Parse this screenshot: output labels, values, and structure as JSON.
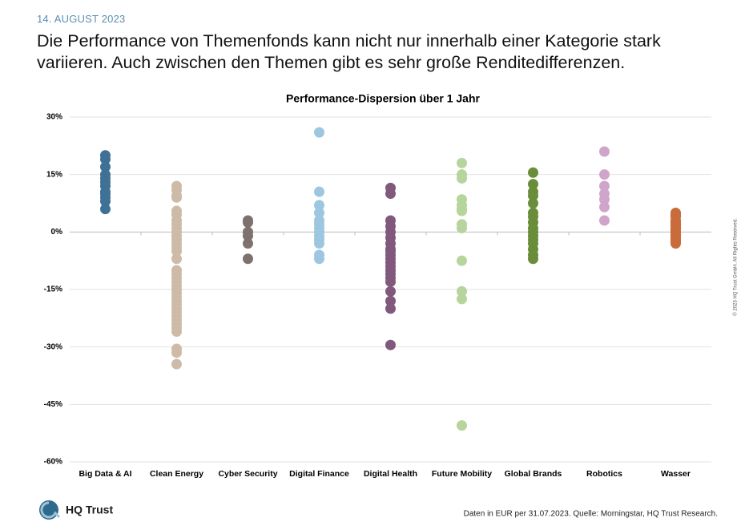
{
  "date": "14. AUGUST 2023",
  "headline": "Die Performance von Themenfonds kann nicht nur innerhalb einer Kategorie stark variieren. Auch zwischen den Themen gibt es sehr große Renditedifferenzen.",
  "chart_data": {
    "type": "strip",
    "title": "Performance-Dispersion über 1 Jahr",
    "categories": [
      "Big Data & AI",
      "Clean Energy",
      "Cyber Security",
      "Digital Finance",
      "Digital Health",
      "Future Mobility",
      "Global Brands",
      "Robotics",
      "Wasser"
    ],
    "colors": [
      "#3f7095",
      "#cdbba7",
      "#7e716e",
      "#9dc6e1",
      "#80597d",
      "#b5d59c",
      "#6a8d3b",
      "#d0a5ca",
      "#c96b3b"
    ],
    "values": [
      [
        20,
        19,
        17,
        15,
        14,
        13,
        12,
        10.5,
        10,
        9,
        8,
        6
      ],
      [
        12,
        11,
        9.5,
        9,
        5.5,
        4.5,
        3,
        2,
        1,
        0,
        -1,
        -2,
        -3,
        -4,
        -5,
        -7,
        -10,
        -11,
        -12,
        -13,
        -14,
        -15,
        -16,
        -17,
        -18,
        -19,
        -20,
        -21,
        -22,
        -23,
        -24,
        -25,
        -26,
        -30.5,
        -31.5,
        -34.5
      ],
      [
        3,
        2.5,
        0,
        -1,
        -3,
        -7
      ],
      [
        26,
        10.5,
        7,
        5,
        3,
        2,
        1,
        0,
        -1,
        -2,
        -3,
        -6,
        -7
      ],
      [
        11.5,
        10,
        3,
        1.5,
        0,
        -1.5,
        -3,
        -4.5,
        -5,
        -6,
        -7,
        -8,
        -9,
        -10,
        -11,
        -12,
        -13,
        -15.5,
        -18,
        -20,
        -29.5
      ],
      [
        18,
        15,
        14,
        8.5,
        7,
        6,
        5.5,
        2,
        1,
        -7.5,
        -15.5,
        -17.5,
        -50.5
      ],
      [
        15.5,
        12.5,
        10.5,
        9.5,
        7.5,
        5,
        4,
        2.5,
        1,
        0,
        -1,
        -2,
        -3,
        -4.5,
        -6,
        -7
      ],
      [
        21,
        15,
        12,
        10,
        8.5,
        6.5,
        3
      ],
      [
        5,
        4.5,
        4,
        3,
        2.5,
        2,
        1.5,
        1,
        0.5,
        0,
        -0.5,
        -1,
        -1.5,
        -2,
        -2.5,
        -3
      ]
    ],
    "ylim": [
      -60,
      30
    ],
    "yticks": [
      {
        "value": 30,
        "label": "30%"
      },
      {
        "value": 15,
        "label": "15%"
      },
      {
        "value": 0,
        "label": "0%"
      },
      {
        "value": -15,
        "label": "-15%"
      },
      {
        "value": -30,
        "label": "-30%"
      },
      {
        "value": -45,
        "label": "-45%"
      },
      {
        "value": -60,
        "label": "-60%"
      }
    ],
    "grid": true
  },
  "logo": "HQ Trust",
  "footnote": "Daten in EUR per 31.07.2023. Quelle: Morningstar, HQ Trust Research.",
  "copyright": "© 2023 HQ Trust GmbH. All Rights Reserved."
}
